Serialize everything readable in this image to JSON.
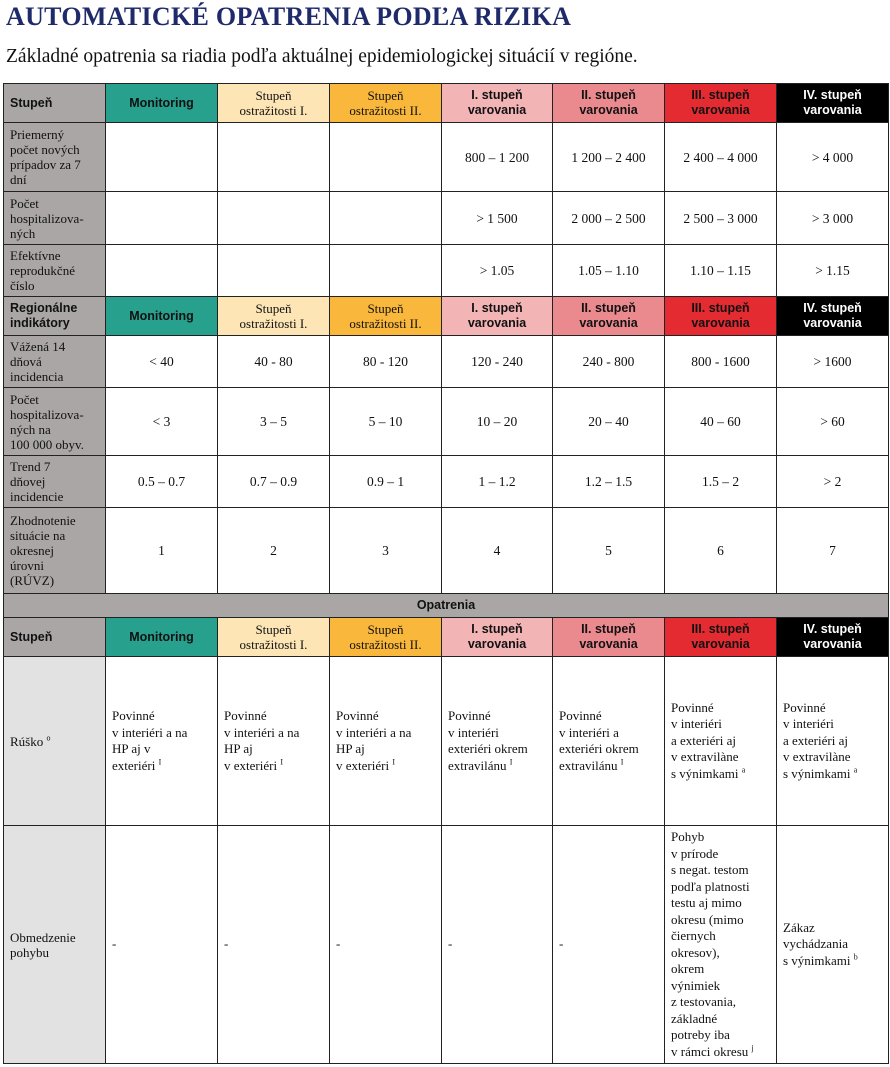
{
  "title": "AUTOMATICKÉ OPATRENIA PODĽA RIZIKA",
  "subtitle": "Základné opatrenia sa riadia podľa aktuálnej epidemiologickej situácií v regióne.",
  "levels": {
    "monitoring": "Monitoring",
    "s1": [
      "Stupeň",
      "ostražitosti I."
    ],
    "s2": [
      "Stupeň",
      "ostražitosti II."
    ],
    "v1": [
      "I. stupeň",
      "varovania"
    ],
    "v2": [
      "II. stupeň",
      "varovania"
    ],
    "v3": [
      "III. stupeň",
      "varovania"
    ],
    "v4": [
      "IV. stupeň",
      "varovania"
    ]
  },
  "colors": {
    "monitoring": "#27a08e",
    "s1": "#fde5b5",
    "s2": "#f9b73b",
    "v1": "#f3b4b6",
    "v2": "#ea8a8e",
    "v3": "#e32b31",
    "v4": "#000000",
    "header_gray": "#aaa6a6"
  },
  "national": {
    "header": "Stupeň",
    "rows": [
      {
        "label": [
          "Priemerný",
          "počet nových",
          "prípadov za 7",
          "dní"
        ],
        "values": [
          "",
          "",
          "",
          "800 – 1 200",
          "1 200 – 2 400",
          "2 400 – 4 000",
          "> 4 000"
        ]
      },
      {
        "label": [
          "Počet",
          "hospitalizova-",
          "ných"
        ],
        "values": [
          "",
          "",
          "",
          "> 1 500",
          "2 000 – 2 500",
          "2 500 – 3 000",
          "> 3 000"
        ]
      },
      {
        "label": [
          "Efektívne",
          "reprodukčné",
          "číslo"
        ],
        "values": [
          "",
          "",
          "",
          "> 1.05",
          "1.05 – 1.10",
          "1.10 – 1.15",
          "> 1.15"
        ]
      }
    ]
  },
  "regional": {
    "header": [
      "Regionálne",
      "indikátory"
    ],
    "rows": [
      {
        "label": [
          "Vážená 14",
          "dňová",
          "incidencia"
        ],
        "values": [
          "< 40",
          "40 - 80",
          "80 - 120",
          "120 - 240",
          "240 - 800",
          "800 - 1600",
          "> 1600"
        ]
      },
      {
        "label": [
          "Počet",
          "hospitalizova-",
          "ných na",
          "100 000 obyv."
        ],
        "values": [
          "< 3",
          "3 – 5",
          "5 – 10",
          "10 – 20",
          "20 – 40",
          "40 – 60",
          "> 60"
        ]
      },
      {
        "label": [
          "Trend 7",
          "dňovej",
          "incidencie"
        ],
        "values": [
          "0.5 – 0.7",
          "0.7 – 0.9",
          "0.9 – 1",
          "1 – 1.2",
          "1.2 – 1.5",
          "1.5 – 2",
          "> 2"
        ]
      },
      {
        "label": [
          "Zhodnotenie",
          "situácie na",
          "okresnej",
          "úrovni",
          "(RÚVZ)"
        ],
        "values": [
          "1",
          "2",
          "3",
          "4",
          "5",
          "6",
          "7"
        ]
      }
    ]
  },
  "measures": {
    "section_title": "Opatrenia",
    "header": "Stupeň",
    "rusko": {
      "label": "Rúško",
      "label_sup": "o",
      "cells": [
        {
          "lines": [
            "Povinné",
            "v interiéri a na",
            "HP aj v",
            "exteriéri"
          ],
          "sup": "I"
        },
        {
          "lines": [
            "Povinné",
            "v interiéri a na",
            "HP aj",
            "v exteriéri"
          ],
          "sup": "I"
        },
        {
          "lines": [
            "Povinné",
            "v interiéri a na",
            "HP aj",
            "v exteriéri"
          ],
          "sup": "I"
        },
        {
          "lines": [
            "Povinné",
            "v interiéri",
            "exteriéri okrem",
            "extravilánu"
          ],
          "sup": "I"
        },
        {
          "lines": [
            "Povinné",
            "v interiéri a",
            "exteriéri okrem",
            "extravilánu"
          ],
          "sup": "I"
        },
        {
          "lines": [
            "Povinné",
            "v interiéri",
            "a exteriéri aj",
            "v extravilàne",
            "s výnimkami"
          ],
          "sup": "a"
        },
        {
          "lines": [
            "Povinné",
            "v interiéri",
            "a exteriéri aj",
            "v extravilàne",
            "s výnimkami"
          ],
          "sup": "a"
        }
      ]
    },
    "pohyb": {
      "label": [
        "Obmedzenie",
        "pohybu"
      ],
      "cells": [
        {
          "lines": [
            "-"
          ],
          "sup": ""
        },
        {
          "lines": [
            "-"
          ],
          "sup": ""
        },
        {
          "lines": [
            "-"
          ],
          "sup": ""
        },
        {
          "lines": [
            "-"
          ],
          "sup": ""
        },
        {
          "lines": [
            "-"
          ],
          "sup": ""
        },
        {
          "lines": [
            "Pohyb",
            "v prírode",
            "s negat. testom",
            "podľa platnosti",
            "testu aj mimo",
            "okresu (mimo",
            "čiernych",
            "okresov),",
            "okrem",
            "výnimiek",
            "z testovania,",
            "základné",
            "potreby iba",
            "v rámci okresu"
          ],
          "sup": "j"
        },
        {
          "lines": [
            "Zákaz",
            "vychádzania",
            "s výnimkami"
          ],
          "sup": "b"
        }
      ]
    }
  }
}
